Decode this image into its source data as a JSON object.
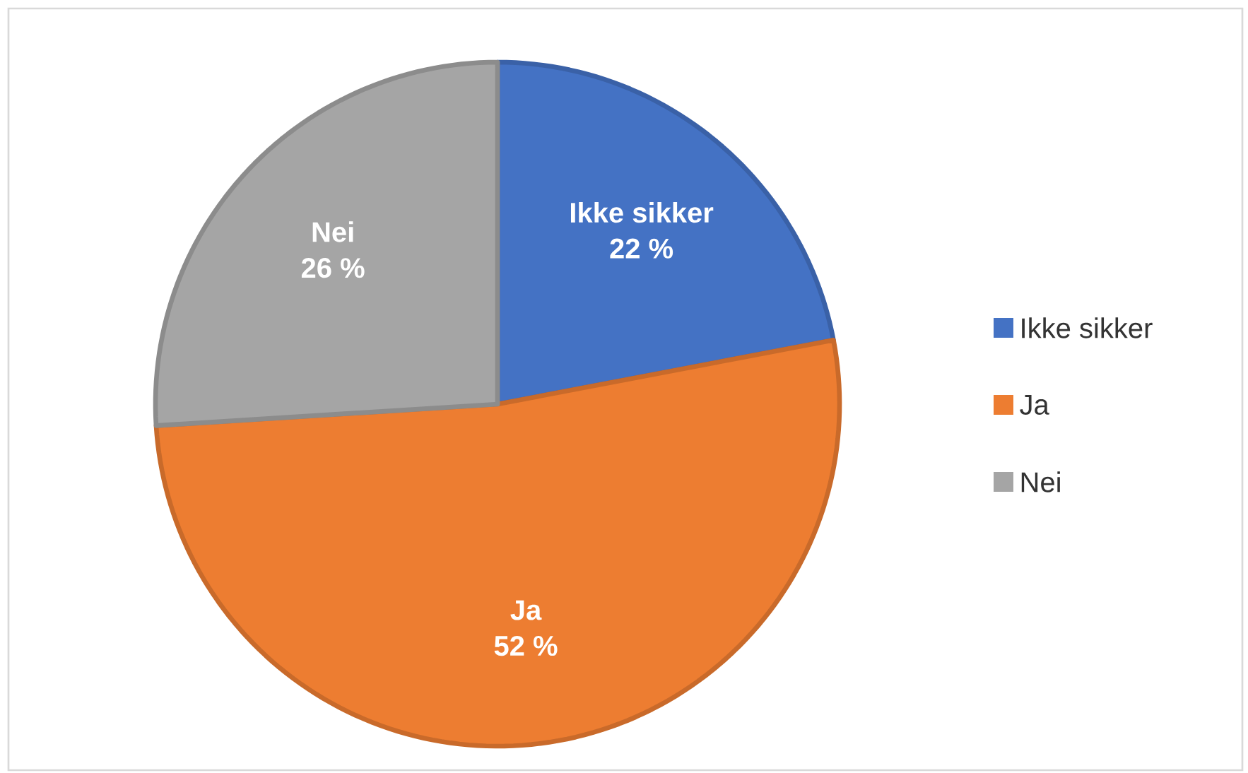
{
  "chart_data": {
    "type": "pie",
    "categories": [
      "Ikke sikker",
      "Ja",
      "Nei"
    ],
    "values": [
      22,
      52,
      26
    ],
    "value_labels": [
      "22 %",
      "52 %",
      "26 %"
    ],
    "colors": [
      "#4472c4",
      "#ed7d31",
      "#a5a5a5"
    ],
    "legend": "right"
  }
}
